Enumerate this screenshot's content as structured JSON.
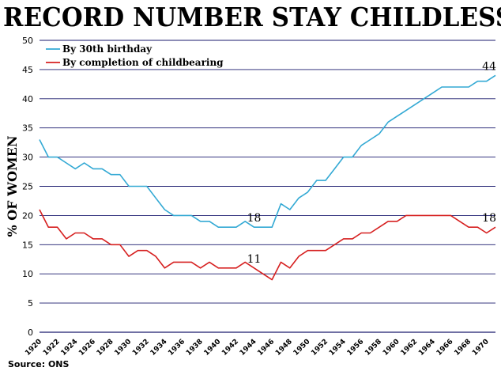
{
  "title": "RECORD NUMBER STAY CHILDLESS",
  "source": "Source: ONS",
  "colors": {
    "series_1": "#33a9d4",
    "series_2": "#d62020",
    "grid": "#1a1a6e"
  },
  "chart_data": {
    "type": "line",
    "title": "RECORD NUMBER STAY CHILDLESS",
    "xlabel": "",
    "ylabel": "% OF WOMEN",
    "xlim": [
      1920,
      1971
    ],
    "ylim": [
      0,
      50
    ],
    "y_ticks": [
      0,
      5,
      10,
      15,
      20,
      25,
      30,
      35,
      40,
      45,
      50
    ],
    "x_tick_labels": [
      "1920",
      "1922",
      "1924",
      "1926",
      "1928",
      "1930",
      "1932",
      "1934",
      "1936",
      "1938",
      "1940",
      "1942",
      "1944",
      "1946",
      "1948",
      "1950",
      "1952",
      "1954",
      "1956",
      "1958",
      "1960",
      "1962",
      "1964",
      "1966",
      "1968",
      "1970"
    ],
    "grid": true,
    "legend_position": "top-left",
    "x": [
      1920,
      1921,
      1922,
      1923,
      1924,
      1925,
      1926,
      1927,
      1928,
      1929,
      1930,
      1931,
      1932,
      1933,
      1934,
      1935,
      1936,
      1937,
      1938,
      1939,
      1940,
      1941,
      1942,
      1943,
      1944,
      1945,
      1946,
      1947,
      1948,
      1949,
      1950,
      1951,
      1952,
      1953,
      1954,
      1955,
      1956,
      1957,
      1958,
      1959,
      1960,
      1961,
      1962,
      1963,
      1964,
      1965,
      1966,
      1967,
      1968,
      1969,
      1970,
      1971
    ],
    "series": [
      {
        "name": "By 30th birthday",
        "values": [
          33,
          30,
          30,
          29,
          28,
          29,
          28,
          28,
          27,
          27,
          25,
          25,
          25,
          23,
          21,
          20,
          20,
          20,
          19,
          19,
          18,
          18,
          18,
          19,
          18,
          18,
          18,
          22,
          21,
          23,
          24,
          26,
          26,
          28,
          30,
          30,
          32,
          33,
          34,
          36,
          37,
          38,
          39,
          40,
          41,
          42,
          42,
          42,
          42,
          43,
          43,
          44
        ]
      },
      {
        "name": "By completion of childbearing",
        "values": [
          21,
          18,
          18,
          16,
          17,
          17,
          16,
          16,
          15,
          15,
          13,
          14,
          14,
          13,
          11,
          12,
          12,
          12,
          11,
          12,
          11,
          11,
          11,
          12,
          11,
          10,
          9,
          12,
          11,
          13,
          14,
          14,
          14,
          15,
          16,
          16,
          17,
          17,
          18,
          19,
          19,
          20,
          20,
          20,
          20,
          20,
          20,
          19,
          18,
          18,
          17,
          18
        ]
      }
    ],
    "annotations": [
      {
        "text": "44",
        "x": 1971,
        "y": 44,
        "series": 0
      },
      {
        "text": "18",
        "x": 1944,
        "y": 18,
        "series": 0
      },
      {
        "text": "11",
        "x": 1944,
        "y": 11,
        "series": 1
      },
      {
        "text": "18",
        "x": 1971,
        "y": 18,
        "series": 1
      }
    ]
  }
}
